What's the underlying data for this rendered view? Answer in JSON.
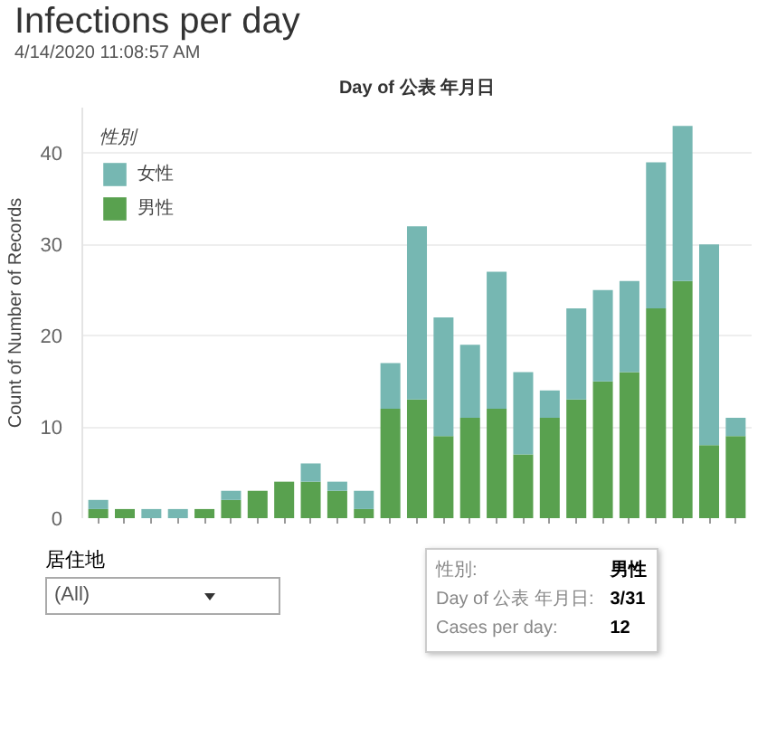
{
  "chart_data": {
    "type": "bar",
    "title": "Infections per day",
    "subtitle": "4/14/2020 11:08:57 AM",
    "xlabel": "Day of 公表 年月日",
    "ylabel": "Count of Number of Records",
    "legend_title": "性別",
    "categories": [
      null,
      null,
      null,
      null,
      null,
      null,
      null,
      null,
      null,
      null,
      null,
      null,
      null,
      null,
      null,
      null,
      null,
      null,
      null,
      null,
      null,
      null,
      null,
      null,
      null
    ],
    "stacked": true,
    "series": [
      {
        "name": "男性",
        "color": "#59a14f",
        "values": [
          1,
          1,
          0,
          0,
          1,
          2,
          3,
          4,
          4,
          3,
          1,
          12,
          13,
          9,
          11,
          12,
          7,
          11,
          13,
          15,
          16,
          23,
          26,
          8,
          9
        ]
      },
      {
        "name": "女性",
        "color": "#76b7b2",
        "values": [
          1,
          0,
          1,
          1,
          0,
          1,
          0,
          0,
          2,
          1,
          2,
          5,
          19,
          13,
          8,
          15,
          9,
          3,
          10,
          10,
          10,
          16,
          17,
          22,
          2
        ]
      }
    ],
    "ylim": [
      0,
      45
    ],
    "yticks": [
      0,
      10,
      20,
      30,
      40
    ],
    "grid": "y",
    "legend": "top left",
    "annotations": [
      "居住地",
      "(All)",
      "性別:",
      "男性",
      "Day of 公表 年月日:",
      "3/31",
      "Cases per day:",
      "12"
    ]
  }
}
